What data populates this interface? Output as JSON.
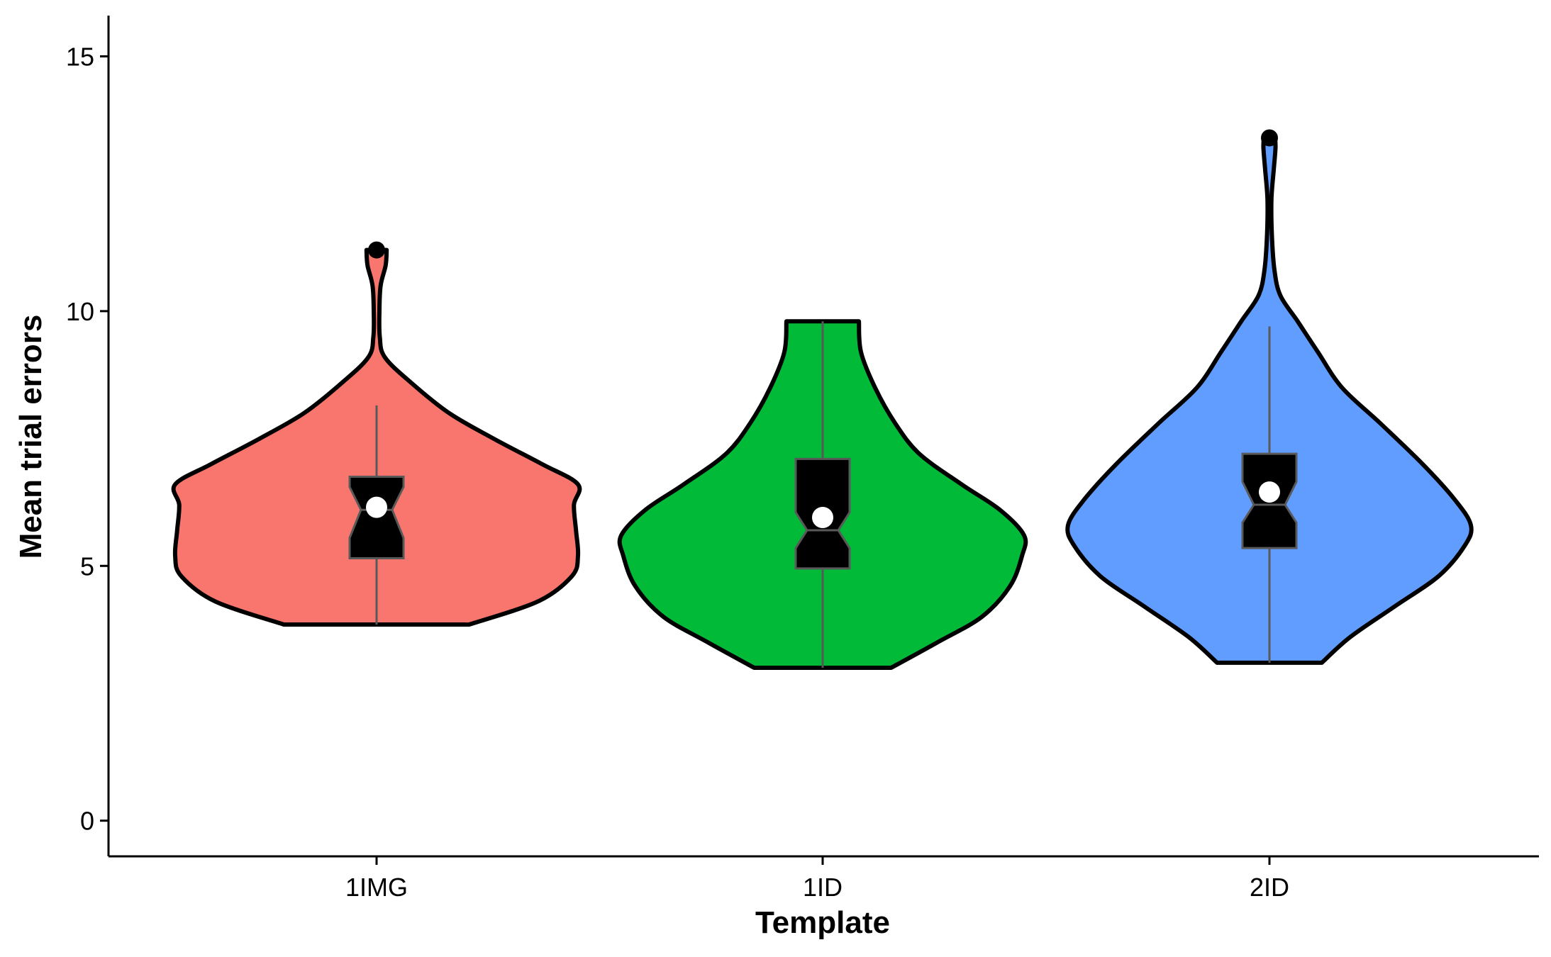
{
  "chart_data": {
    "type": "violin",
    "title": "",
    "xlabel": "Template",
    "ylabel": "Mean trial errors",
    "ylim": [
      -0.7,
      15.8
    ],
    "yticks": [
      0,
      5,
      10,
      15
    ],
    "categories": [
      "1IMG",
      "1ID",
      "2ID"
    ],
    "colors": [
      "#F8766D",
      "#00BA38",
      "#619CFF"
    ],
    "outline_color": "#000000",
    "grid": false,
    "legend": "none",
    "series": [
      {
        "category": "1IMG",
        "min": 3.85,
        "max": 11.2,
        "whisker_low": 3.85,
        "whisker_high": 8.15,
        "q1": 5.15,
        "median": 6.1,
        "q3": 6.75,
        "notch_low": 5.55,
        "notch_high": 6.55,
        "mean": 6.15,
        "outliers": [
          11.2
        ],
        "density": [
          [
            3.85,
            0.46
          ],
          [
            4.3,
            0.8
          ],
          [
            4.8,
            0.97
          ],
          [
            5.2,
            1.0
          ],
          [
            5.7,
            0.99
          ],
          [
            6.2,
            0.98
          ],
          [
            6.6,
            1.0
          ],
          [
            7.0,
            0.82
          ],
          [
            7.5,
            0.58
          ],
          [
            8.0,
            0.36
          ],
          [
            8.6,
            0.17
          ],
          [
            9.1,
            0.04
          ],
          [
            9.5,
            0.016
          ],
          [
            10.0,
            0.014
          ],
          [
            10.5,
            0.02
          ],
          [
            10.9,
            0.045
          ],
          [
            11.2,
            0.05
          ]
        ]
      },
      {
        "category": "1ID",
        "min": 3.0,
        "max": 9.8,
        "whisker_low": 3.0,
        "whisker_high": 9.8,
        "q1": 4.95,
        "median": 5.7,
        "q3": 7.1,
        "notch_low": 5.35,
        "notch_high": 6.05,
        "mean": 5.95,
        "outliers": [],
        "density": [
          [
            3.0,
            0.34
          ],
          [
            3.5,
            0.57
          ],
          [
            4.0,
            0.79
          ],
          [
            4.6,
            0.93
          ],
          [
            5.2,
            0.99
          ],
          [
            5.6,
            1.0
          ],
          [
            6.1,
            0.88
          ],
          [
            6.6,
            0.69
          ],
          [
            7.2,
            0.48
          ],
          [
            7.8,
            0.36
          ],
          [
            8.5,
            0.26
          ],
          [
            9.2,
            0.19
          ],
          [
            9.8,
            0.18
          ]
        ]
      },
      {
        "category": "2ID",
        "min": 3.1,
        "max": 13.4,
        "whisker_low": 3.1,
        "whisker_high": 9.7,
        "q1": 5.35,
        "median": 6.2,
        "q3": 7.2,
        "notch_low": 5.85,
        "notch_high": 6.65,
        "mean": 6.45,
        "outliers": [
          13.4
        ],
        "density": [
          [
            3.1,
            0.26
          ],
          [
            3.6,
            0.4
          ],
          [
            4.2,
            0.62
          ],
          [
            4.8,
            0.84
          ],
          [
            5.4,
            0.97
          ],
          [
            5.8,
            1.0
          ],
          [
            6.3,
            0.92
          ],
          [
            7.0,
            0.76
          ],
          [
            7.8,
            0.55
          ],
          [
            8.5,
            0.36
          ],
          [
            9.2,
            0.24
          ],
          [
            9.8,
            0.14
          ],
          [
            10.3,
            0.055
          ],
          [
            10.8,
            0.025
          ],
          [
            11.5,
            0.012
          ],
          [
            12.2,
            0.01
          ],
          [
            12.8,
            0.022
          ],
          [
            13.2,
            0.03
          ],
          [
            13.4,
            0.028
          ]
        ]
      }
    ]
  }
}
